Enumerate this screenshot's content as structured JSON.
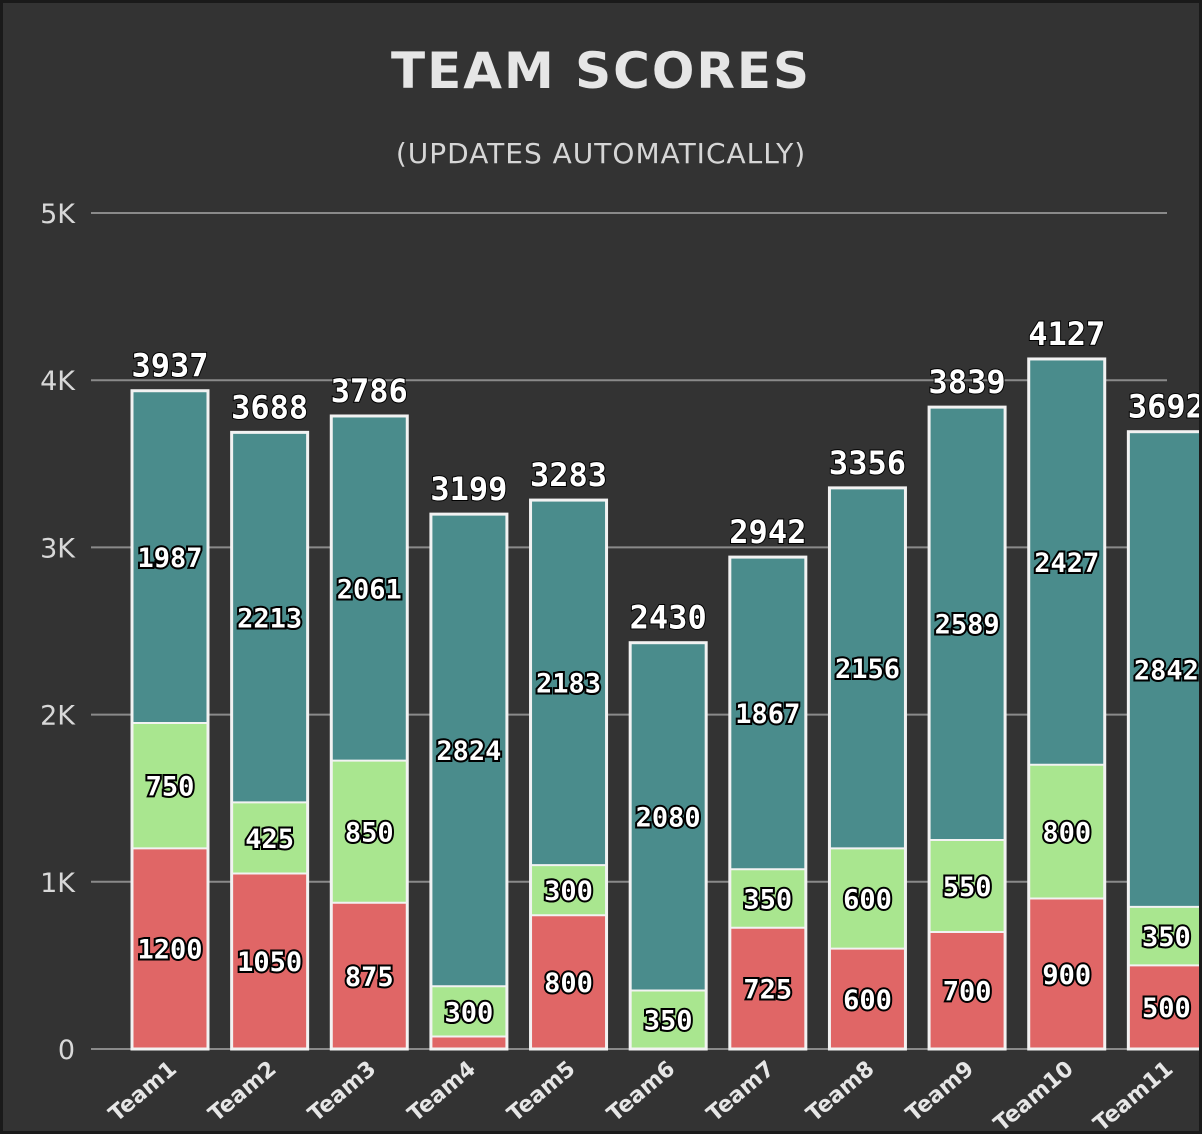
{
  "chart_data": {
    "type": "bar",
    "stacked": true,
    "title": "TEAM SCORES",
    "subtitle": "(UPDATES AUTOMATICALLY)",
    "categories": [
      "Team1",
      "Team2",
      "Team3",
      "Team4",
      "Team5",
      "Team6",
      "Team7",
      "Team8",
      "Team9",
      "Team10",
      "Team11"
    ],
    "yticks": [
      "0",
      "1K",
      "2K",
      "3K",
      "4K",
      "5K"
    ],
    "ylim": [
      0,
      5000
    ],
    "grid": true,
    "series": [
      {
        "color": "#e06666",
        "values": [
          1200,
          1050,
          875,
          75,
          800,
          0,
          725,
          600,
          700,
          900,
          500
        ],
        "labels": [
          "1200",
          "1050",
          "875",
          "",
          "800",
          "",
          "725",
          "600",
          "700",
          "900",
          "500"
        ]
      },
      {
        "color": "#a9e68f",
        "values": [
          750,
          425,
          850,
          300,
          300,
          350,
          350,
          600,
          550,
          800,
          350
        ],
        "labels": [
          "750",
          "425",
          "850",
          "300",
          "300",
          "350",
          "350",
          "600",
          "550",
          "800",
          "350"
        ]
      },
      {
        "color": "#4a8c8c",
        "values": [
          1987,
          2213,
          2061,
          2824,
          2183,
          2080,
          1867,
          2156,
          2589,
          2427,
          2842
        ],
        "labels": [
          "1987",
          "2213",
          "2061",
          "2824",
          "2183",
          "2080",
          "1867",
          "2156",
          "2589",
          "2427",
          "2842"
        ]
      }
    ],
    "totals": [
      "3937",
      "3688",
      "3786",
      "3199",
      "3283",
      "2430",
      "2942",
      "3356",
      "3839",
      "4127",
      "3692"
    ]
  }
}
